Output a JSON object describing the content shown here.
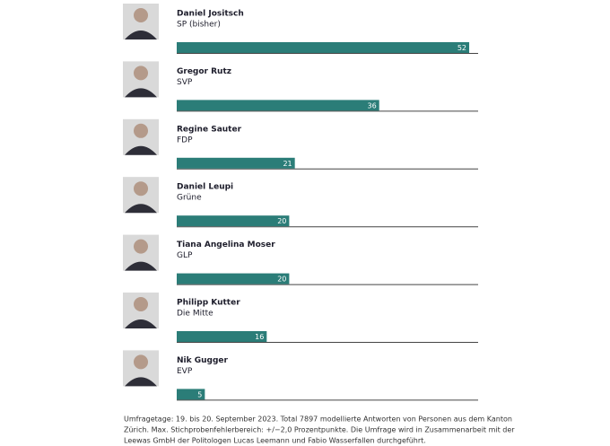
{
  "chart_data": {
    "type": "bar",
    "orientation": "horizontal",
    "color": "#2b7d78",
    "categories": [
      "Daniel Jositsch",
      "Gregor Rutz",
      "Regine Sauter",
      "Daniel Leupi",
      "Tiana Angelina Moser",
      "Philipp Kutter",
      "Nik Gugger"
    ],
    "parties": [
      "SP (bisher)",
      "SVP",
      "FDP",
      "Grüne",
      "GLP",
      "Die Mitte",
      "EVP"
    ],
    "values": [
      52,
      36,
      21,
      20,
      20,
      16,
      5
    ],
    "footnote": [
      "Umfragetage: 19. bis 20. September 2023. Total 7897 modellierte Antworten von Personen aus dem Kanton",
      "Zürich. Max. Stichprobenfehlerbereich: +/−2,0 Prozentpunkte. Die Umfrage wird in Zusammenarbeit mit der",
      "Leewas GmbH der Politologen Lucas Leemann und Fabio Wasserfallen durchgeführt."
    ]
  }
}
